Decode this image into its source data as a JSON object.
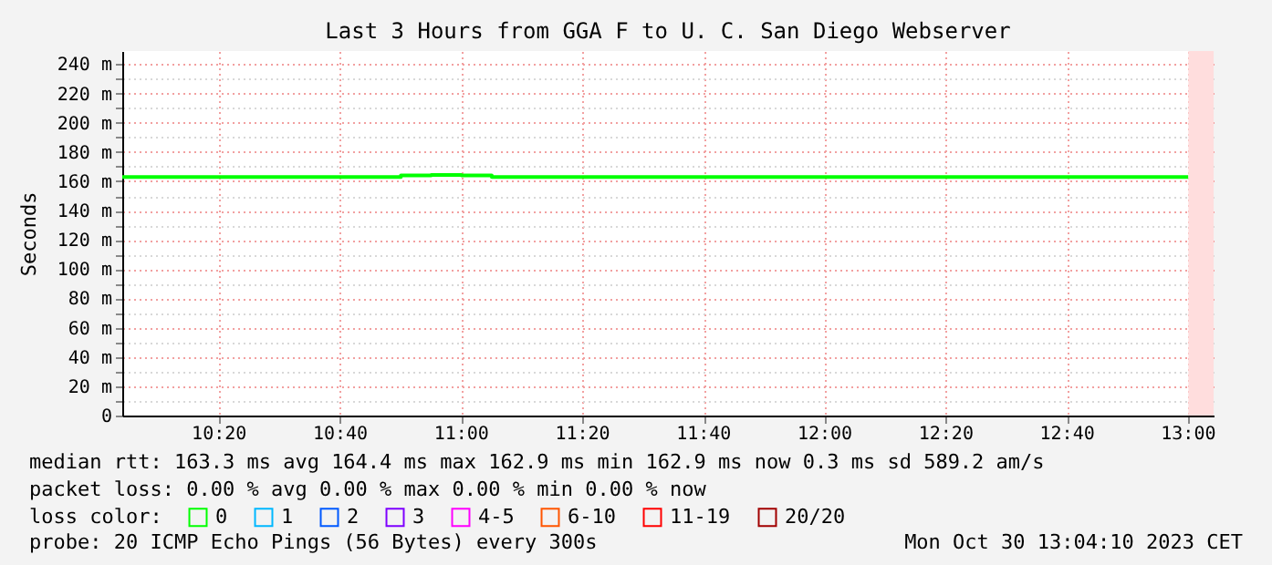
{
  "chart_data": {
    "type": "step",
    "title": "Last 3 Hours from GGA F to U. C. San Diego Webserver",
    "ylabel": "Seconds",
    "x": [
      10.0667,
      10.8333,
      10.9167,
      11.0,
      11.0833,
      13.0
    ],
    "series": [
      {
        "name": "0",
        "color": "#00ff00",
        "values": [
          163,
          164,
          164.4,
          164,
          163,
          163
        ]
      },
      {
        "name": "1",
        "color": "#00b8ff",
        "values": [
          null,
          null,
          null,
          null,
          null,
          null
        ]
      },
      {
        "name": "2",
        "color": "#0059ff",
        "values": [
          null,
          null,
          null,
          null,
          null,
          null
        ]
      },
      {
        "name": "3",
        "color": "#7e00ff",
        "values": [
          null,
          null,
          null,
          null,
          null,
          null
        ]
      },
      {
        "name": "4-5",
        "color": "#ff00ff",
        "values": [
          null,
          null,
          null,
          null,
          null,
          null
        ]
      },
      {
        "name": "6-10",
        "color": "#ff5500",
        "values": [
          null,
          null,
          null,
          null,
          null,
          null
        ]
      },
      {
        "name": "11-19",
        "color": "#ff0000",
        "values": [
          null,
          null,
          null,
          null,
          null,
          null
        ]
      },
      {
        "name": "20/20",
        "color": "#a10000",
        "values": [
          null,
          null,
          null,
          null,
          null,
          null
        ]
      }
    ],
    "legend_title": "loss color:",
    "legend": "bottom left",
    "grid": true,
    "marker": "none",
    "line_style": "solid",
    "xlim": [
      10.0667,
      13.0694
    ],
    "xticks": [
      {
        "value": 10.3333,
        "label": "10:20"
      },
      {
        "value": 10.6667,
        "label": "10:40"
      },
      {
        "value": 11,
        "label": "11:00"
      },
      {
        "value": 11.3333,
        "label": "11:20"
      },
      {
        "value": 11.6667,
        "label": "11:40"
      },
      {
        "value": 12,
        "label": "12:00"
      },
      {
        "value": 12.3333,
        "label": "12:20"
      },
      {
        "value": 12.6667,
        "label": "12:40"
      },
      {
        "value": 13,
        "label": "13:00"
      }
    ],
    "ylim": [
      0,
      249
    ],
    "yticks": [
      0,
      {
        "value": 10,
        "label": null
      },
      {
        "value": 20,
        "label": "20 m"
      },
      {
        "value": 30,
        "label": null
      },
      {
        "value": 40,
        "label": "40 m"
      },
      {
        "value": 50,
        "label": null
      },
      {
        "value": 60,
        "label": "60 m"
      },
      {
        "value": 70,
        "label": null
      },
      {
        "value": 80,
        "label": "80 m"
      },
      {
        "value": 90,
        "label": null
      },
      {
        "value": 100,
        "label": "100 m"
      },
      {
        "value": 110,
        "label": null
      },
      {
        "value": 120,
        "label": "120 m"
      },
      {
        "value": 130,
        "label": null
      },
      {
        "value": 140,
        "label": "140 m"
      },
      {
        "value": 150,
        "label": null
      },
      {
        "value": 160,
        "label": "160 m"
      },
      {
        "value": 170,
        "label": null
      },
      {
        "value": 180,
        "label": "180 m"
      },
      {
        "value": 190,
        "label": null
      },
      {
        "value": 200,
        "label": "200 m"
      },
      {
        "value": 210,
        "label": null
      },
      {
        "value": 220,
        "label": "220 m"
      },
      {
        "value": 230,
        "label": null
      },
      {
        "value": 240,
        "label": "240 m"
      }
    ],
    "bands": [
      {
        "axis": "x",
        "from": 13.0,
        "to": 13.0694,
        "color": "#ffdddd"
      }
    ],
    "annotations": [
      "median rtt:  163.3 ms avg  164.4 ms max  162.9 ms min  162.9 ms now  0.3 ms sd  589.2   am/s",
      "packet loss: 0.00 % avg  0.00 % max  0.00 % min  0.00 % now",
      "probe:       20 ICMP Echo Pings (56 Bytes) every 300s",
      "Mon Oct 30 13:04:10 2023 CET"
    ]
  }
}
